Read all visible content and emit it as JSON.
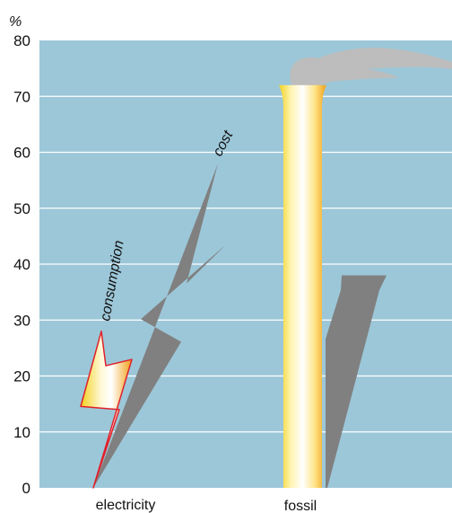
{
  "chart_data": {
    "type": "bar",
    "y_unit": "%",
    "ylim": [
      0,
      80
    ],
    "y_ticks": [
      0,
      10,
      20,
      30,
      40,
      50,
      60,
      70,
      80
    ],
    "grid": true,
    "categories": [
      "electricity",
      "fossil"
    ],
    "series": [
      {
        "name": "consumption",
        "values": [
          28,
          72
        ]
      },
      {
        "name": "cost",
        "values": [
          58,
          38
        ]
      }
    ],
    "annotations": [
      "consumption",
      "cost"
    ],
    "colors": {
      "plot_background": "#9cc7d8",
      "grid": "#ffffff",
      "shadow": "#808080",
      "smoke": "#bdbdbd",
      "bolt_outline": "#e0202a",
      "bar_gradient": [
        "#f2d21c",
        "#fff7cc",
        "#ffffff",
        "#ffe88a",
        "#f2a51c"
      ]
    }
  }
}
